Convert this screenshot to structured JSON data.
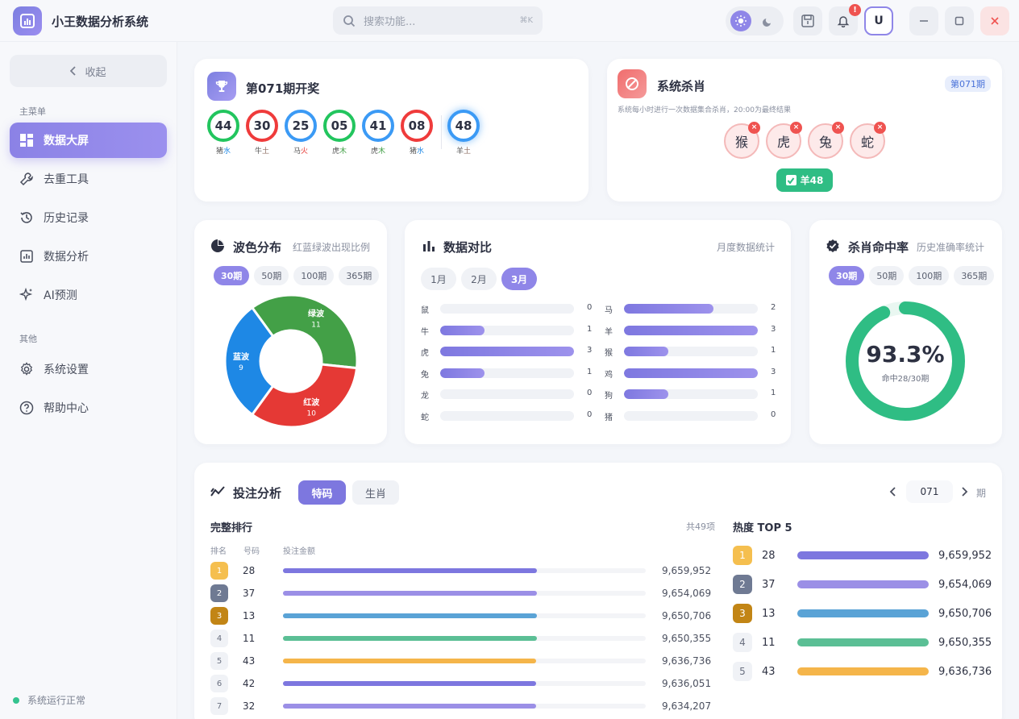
{
  "app": {
    "title": "小王数据分析系统",
    "search_placeholder": "搜索功能...",
    "search_shortcut": "⌘K",
    "avatar": "U",
    "notif_badge": "!"
  },
  "sidebar": {
    "collapse_label": "收起",
    "main_section": "主菜单",
    "items": [
      {
        "label": "数据大屏",
        "icon": "dashboard-icon"
      },
      {
        "label": "去重工具",
        "icon": "wrench-icon"
      },
      {
        "label": "历史记录",
        "icon": "history-icon"
      },
      {
        "label": "数据分析",
        "icon": "chart-icon"
      },
      {
        "label": "AI预测",
        "icon": "sparkle-icon"
      }
    ],
    "other_section": "其他",
    "other_items": [
      {
        "label": "系统设置",
        "icon": "gear-icon"
      },
      {
        "label": "帮助中心",
        "icon": "help-icon"
      }
    ],
    "status": "系统运行正常"
  },
  "draw": {
    "title": "第071期开奖",
    "balls": [
      {
        "num": "44",
        "zodiac": "猪",
        "element": "水",
        "color": "green"
      },
      {
        "num": "30",
        "zodiac": "牛",
        "element": "土",
        "color": "red"
      },
      {
        "num": "25",
        "zodiac": "马",
        "element": "火",
        "color": "blue"
      },
      {
        "num": "05",
        "zodiac": "虎",
        "element": "木",
        "color": "green"
      },
      {
        "num": "41",
        "zodiac": "虎",
        "element": "木",
        "color": "blue"
      },
      {
        "num": "08",
        "zodiac": "猪",
        "element": "水",
        "color": "red"
      }
    ],
    "special": {
      "num": "48",
      "zodiac": "羊",
      "element": "土",
      "color": "blue"
    }
  },
  "kill": {
    "title": "系统杀肖",
    "period": "第071期",
    "desc": "系统每小时进行一次数据集合杀肖，20:00为最终结果",
    "zodiacs": [
      "猴",
      "虎",
      "兔",
      "蛇"
    ],
    "result": "羊48"
  },
  "wave": {
    "title": "波色分布",
    "sub": "红蓝绿波出现比例",
    "filters": [
      "30期",
      "50期",
      "100期",
      "365期"
    ],
    "active": 0
  },
  "compare": {
    "title": "数据对比",
    "sub": "月度数据统计",
    "months": [
      "1月",
      "2月",
      "3月"
    ],
    "active": 2,
    "max": 3,
    "left": [
      {
        "name": "鼠",
        "value": 0
      },
      {
        "name": "牛",
        "value": 1
      },
      {
        "name": "虎",
        "value": 3
      },
      {
        "name": "兔",
        "value": 1
      },
      {
        "name": "龙",
        "value": 0
      },
      {
        "name": "蛇",
        "value": 0
      }
    ],
    "right": [
      {
        "name": "马",
        "value": 2
      },
      {
        "name": "羊",
        "value": 3
      },
      {
        "name": "猴",
        "value": 1
      },
      {
        "name": "鸡",
        "value": 3
      },
      {
        "name": "狗",
        "value": 1
      },
      {
        "name": "猪",
        "value": 0
      }
    ]
  },
  "hit": {
    "title": "杀肖命中率",
    "sub": "历史准确率统计",
    "filters": [
      "30期",
      "50期",
      "100期",
      "365期"
    ],
    "active": 0,
    "rate_text": "93.3%",
    "rate": 0.933,
    "detail": "命中28/30期"
  },
  "bet": {
    "title": "投注分析",
    "tabs": [
      "特码",
      "生肖"
    ],
    "active_tab": 0,
    "period": "071",
    "period_unit": "期",
    "rank_title": "完整排行",
    "rank_count": "共49项",
    "headers": [
      "排名",
      "号码",
      "投注金额"
    ],
    "rows": [
      {
        "rank": "1",
        "num": "28",
        "amount": "9,659,952",
        "value": 9659952
      },
      {
        "rank": "2",
        "num": "37",
        "amount": "9,654,069",
        "value": 9654069
      },
      {
        "rank": "3",
        "num": "13",
        "amount": "9,650,706",
        "value": 9650706
      },
      {
        "rank": "4",
        "num": "11",
        "amount": "9,650,355",
        "value": 9650355
      },
      {
        "rank": "5",
        "num": "43",
        "amount": "9,636,736",
        "value": 9636736
      },
      {
        "rank": "6",
        "num": "42",
        "amount": "9,636,051",
        "value": 9636051
      },
      {
        "rank": "7",
        "num": "32",
        "amount": "9,634,207",
        "value": 9634207
      }
    ],
    "hot_title": "热度 TOP 5",
    "hot": [
      {
        "rank": "1",
        "num": "28",
        "amount": "9,659,952"
      },
      {
        "rank": "2",
        "num": "37",
        "amount": "9,654,069"
      },
      {
        "rank": "3",
        "num": "13",
        "amount": "9,650,706"
      },
      {
        "rank": "4",
        "num": "11",
        "amount": "9,650,355"
      },
      {
        "rank": "5",
        "num": "43",
        "amount": "9,636,736"
      }
    ]
  },
  "chart_data": [
    {
      "type": "pie",
      "title": "波色分布",
      "categories": [
        "绿波",
        "红波",
        "蓝波"
      ],
      "values": [
        11,
        10,
        9
      ],
      "colors": [
        "#43a047",
        "#e53935",
        "#1e88e5"
      ]
    },
    {
      "type": "bar",
      "title": "数据对比",
      "categories": [
        "鼠",
        "牛",
        "虎",
        "兔",
        "龙",
        "蛇",
        "马",
        "羊",
        "猴",
        "鸡",
        "狗",
        "猪"
      ],
      "values": [
        0,
        1,
        3,
        1,
        0,
        0,
        2,
        3,
        1,
        3,
        1,
        0
      ],
      "xlim": [
        0,
        3
      ]
    }
  ]
}
